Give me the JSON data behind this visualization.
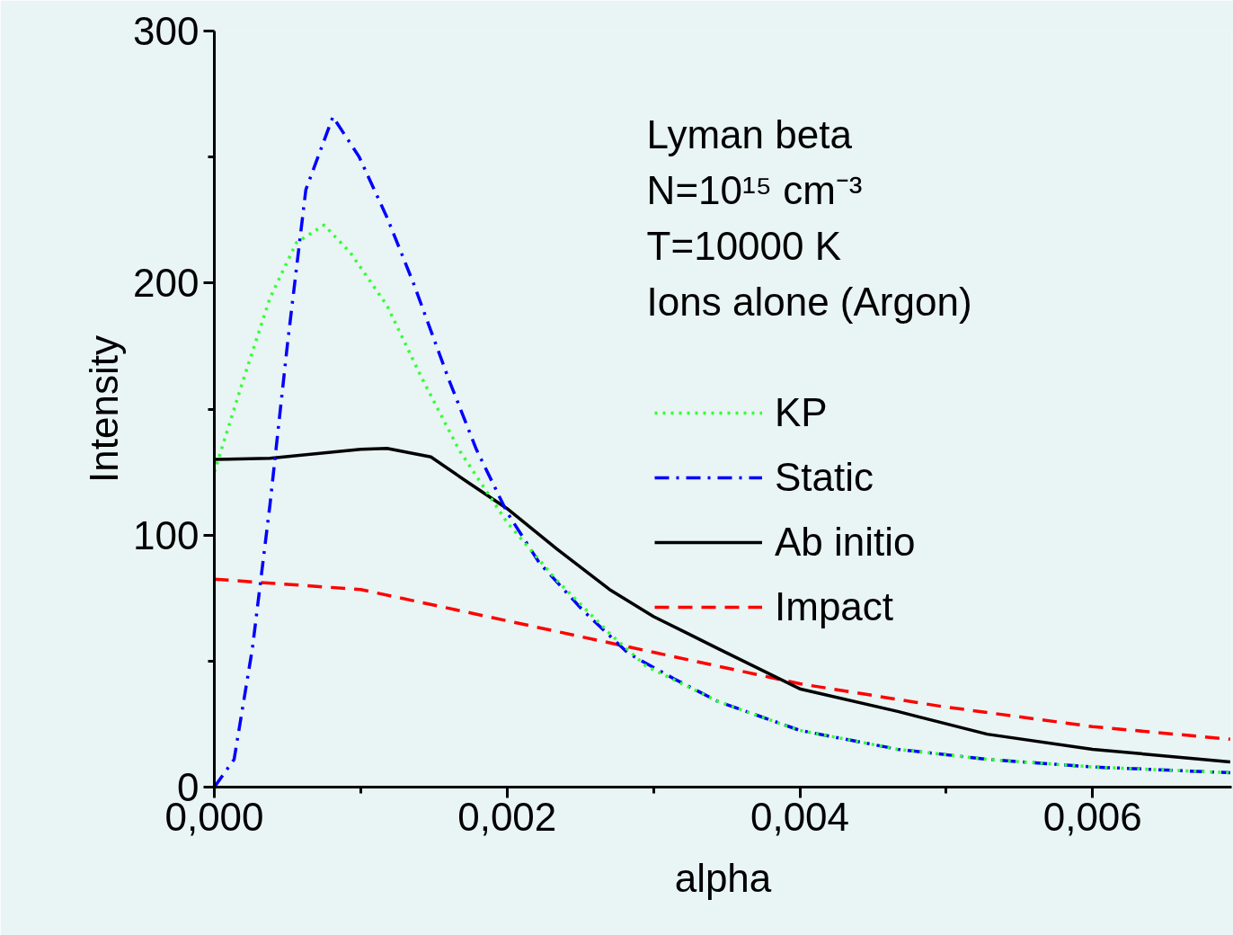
{
  "chart_data": {
    "type": "line",
    "xlabel": "alpha",
    "ylabel": "Intensity",
    "annotations": [
      "Lyman beta",
      "N=10¹⁵ cm⁻³",
      "T=10000 K",
      "Ions alone (Argon)"
    ],
    "xlim": [
      0,
      0.00695
    ],
    "ylim": [
      0,
      300
    ],
    "xticks": [
      {
        "value": 0,
        "label": "0,000"
      },
      {
        "value": 0.001,
        "label": null
      },
      {
        "value": 0.002,
        "label": "0,002"
      },
      {
        "value": 0.003,
        "label": null
      },
      {
        "value": 0.004,
        "label": "0,004"
      },
      {
        "value": 0.005,
        "label": null
      },
      {
        "value": 0.006,
        "label": "0,006"
      }
    ],
    "yticks": [
      0,
      {
        "value": 50,
        "label": null
      },
      100,
      {
        "value": 150,
        "label": null
      },
      200,
      {
        "value": 250,
        "label": null
      },
      300
    ],
    "grid": false,
    "legend": "right",
    "marker": "none",
    "series": [
      {
        "name": "KP",
        "color": "#33ff33",
        "line_style": "dotted",
        "x": [
          0,
          0.0002,
          0.00038,
          0.00056,
          0.00075,
          0.00093,
          0.00118,
          0.00142,
          0.00167,
          0.002,
          0.00234,
          0.0027,
          0.00295,
          0.00344,
          0.004,
          0.00467,
          0.00528,
          0.006,
          0.00694
        ],
        "values": [
          125,
          162,
          194,
          216,
          223,
          212,
          191,
          162,
          134,
          105,
          82,
          61,
          48,
          34,
          22.5,
          15,
          11,
          8,
          5.7
        ]
      },
      {
        "name": "Static",
        "color": "#0000ff",
        "line_style": "dashdot",
        "x": [
          0,
          0.000135,
          0.00026,
          0.00038,
          0.0005,
          0.000625,
          0.00081,
          0.00099,
          0.00118,
          0.00136,
          0.0016,
          0.00179,
          0.002,
          0.00222,
          0.00252,
          0.00283,
          0.00314,
          0.00344,
          0.004,
          0.00467,
          0.00528,
          0.006,
          0.00694
        ],
        "values": [
          0,
          11,
          55,
          112,
          176,
          237,
          266,
          250,
          226,
          200,
          162,
          134,
          109,
          89,
          70,
          53,
          43,
          34,
          22.5,
          15,
          11,
          8,
          5.7
        ]
      },
      {
        "name": "Ab initio",
        "color": "#000000",
        "line_style": "solid",
        "x": [
          0,
          0.00038,
          0.001,
          0.00118,
          0.00148,
          0.00173,
          0.002,
          0.00234,
          0.0027,
          0.003,
          0.00344,
          0.004,
          0.00467,
          0.00528,
          0.006,
          0.00694
        ],
        "values": [
          130,
          130.5,
          134,
          134.4,
          131,
          121,
          110.5,
          94.5,
          78.4,
          67.7,
          55,
          39,
          30,
          21,
          15,
          10
        ]
      },
      {
        "name": "Impact",
        "color": "#ff0000",
        "line_style": "dashed",
        "x": [
          0,
          0.001,
          0.002,
          0.003,
          0.004,
          0.00497,
          0.006,
          0.00694
        ],
        "values": [
          82.5,
          78.4,
          66,
          53.5,
          41,
          32,
          24,
          19
        ]
      }
    ]
  }
}
